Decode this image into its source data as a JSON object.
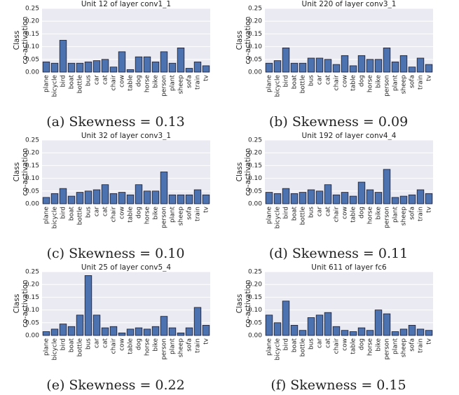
{
  "chart_data": [
    {
      "type": "bar",
      "title": "Unit 12 of layer conv1_1",
      "ylabel": [
        "Class",
        "co-activation"
      ],
      "caption": "(a) Skewness = 0.13",
      "categories": [
        "plane",
        "bicycle",
        "bird",
        "boat",
        "bottle",
        "bus",
        "car",
        "cat",
        "chair",
        "cow",
        "table",
        "dog",
        "horse",
        "bike",
        "person",
        "plant",
        "sheep",
        "sofa",
        "train",
        "tv"
      ],
      "values": [
        0.04,
        0.035,
        0.125,
        0.035,
        0.035,
        0.04,
        0.045,
        0.05,
        0.02,
        0.08,
        0.01,
        0.06,
        0.06,
        0.04,
        0.08,
        0.035,
        0.095,
        0.015,
        0.04,
        0.025
      ],
      "color": "#4c72b0",
      "ylim": [
        0,
        0.25
      ],
      "yticks": [
        {
          "value": 0,
          "label": "0.00"
        },
        {
          "value": 0.05,
          "label": "0.05"
        },
        {
          "value": 0.1,
          "label": "0.10"
        },
        {
          "value": 0.15,
          "label": "0.15"
        },
        {
          "value": 0.2,
          "label": "0.20"
        },
        {
          "value": 0.25,
          "label": "0.25"
        }
      ],
      "grid": true
    },
    {
      "type": "bar",
      "title": "Unit 220 of layer conv3_1",
      "ylabel": [
        "Class",
        "co-activation"
      ],
      "caption": "(b) Skewness = 0.09",
      "categories": [
        "plane",
        "bicycle",
        "bird",
        "boat",
        "bottle",
        "bus",
        "car",
        "cat",
        "chair",
        "cow",
        "table",
        "dog",
        "horse",
        "bike",
        "person",
        "plant",
        "sheep",
        "sofa",
        "train",
        "tv"
      ],
      "values": [
        0.035,
        0.045,
        0.095,
        0.035,
        0.035,
        0.055,
        0.055,
        0.05,
        0.03,
        0.065,
        0.025,
        0.065,
        0.05,
        0.05,
        0.095,
        0.04,
        0.065,
        0.02,
        0.055,
        0.03
      ],
      "color": "#4c72b0",
      "ylim": [
        0,
        0.25
      ],
      "yticks": [
        {
          "value": 0,
          "label": "0.00"
        },
        {
          "value": 0.05,
          "label": "0.05"
        },
        {
          "value": 0.1,
          "label": "0.10"
        },
        {
          "value": 0.15,
          "label": "0.15"
        },
        {
          "value": 0.2,
          "label": "0.20"
        },
        {
          "value": 0.25,
          "label": "0.25"
        }
      ],
      "grid": true
    },
    {
      "type": "bar",
      "title": "Unit 32 of layer conv3_1",
      "ylabel": [
        "Class",
        "co-activation"
      ],
      "caption": "(c) Skewness = 0.10",
      "categories": [
        "plane",
        "bicycle",
        "bird",
        "boat",
        "bottle",
        "bus",
        "car",
        "cat",
        "chair",
        "cow",
        "table",
        "dog",
        "horse",
        "bike",
        "person",
        "plant",
        "sheep",
        "sofa",
        "train",
        "tv"
      ],
      "values": [
        0.025,
        0.04,
        0.06,
        0.03,
        0.045,
        0.05,
        0.055,
        0.075,
        0.04,
        0.045,
        0.035,
        0.075,
        0.05,
        0.05,
        0.125,
        0.035,
        0.035,
        0.035,
        0.055,
        0.035
      ],
      "color": "#4c72b0",
      "ylim": [
        0,
        0.25
      ],
      "yticks": [
        {
          "value": 0,
          "label": "0.00"
        },
        {
          "value": 0.05,
          "label": "0.05"
        },
        {
          "value": 0.1,
          "label": "0.10"
        },
        {
          "value": 0.15,
          "label": "0.15"
        },
        {
          "value": 0.2,
          "label": "0.20"
        },
        {
          "value": 0.25,
          "label": "0.25"
        }
      ],
      "grid": true
    },
    {
      "type": "bar",
      "title": "Unit 192 of layer conv4_4",
      "ylabel": [
        "Class",
        "co-activation"
      ],
      "caption": "(d) Skewness = 0.11",
      "categories": [
        "plane",
        "bicycle",
        "bird",
        "boat",
        "bottle",
        "bus",
        "car",
        "cat",
        "chair",
        "cow",
        "table",
        "dog",
        "horse",
        "bike",
        "person",
        "plant",
        "sheep",
        "sofa",
        "train",
        "tv"
      ],
      "values": [
        0.045,
        0.04,
        0.06,
        0.04,
        0.045,
        0.055,
        0.05,
        0.075,
        0.035,
        0.045,
        0.03,
        0.085,
        0.055,
        0.045,
        0.135,
        0.025,
        0.03,
        0.035,
        0.055,
        0.04
      ],
      "color": "#4c72b0",
      "ylim": [
        0,
        0.25
      ],
      "yticks": [
        {
          "value": 0,
          "label": "0.00"
        },
        {
          "value": 0.05,
          "label": "0.05"
        },
        {
          "value": 0.1,
          "label": "0.10"
        },
        {
          "value": 0.15,
          "label": "0.15"
        },
        {
          "value": 0.2,
          "label": "0.20"
        },
        {
          "value": 0.25,
          "label": "0.25"
        }
      ],
      "grid": true
    },
    {
      "type": "bar",
      "title": "Unit 25 of layer conv5_4",
      "ylabel": [
        "Class",
        "co-activation"
      ],
      "caption": "(e) Skewness = 0.22",
      "categories": [
        "plane",
        "bicycle",
        "bird",
        "boat",
        "bottle",
        "bus",
        "car",
        "cat",
        "chair",
        "cow",
        "table",
        "dog",
        "horse",
        "bike",
        "person",
        "plant",
        "sheep",
        "sofa",
        "train",
        "tv"
      ],
      "values": [
        0.015,
        0.025,
        0.045,
        0.035,
        0.08,
        0.235,
        0.08,
        0.03,
        0.035,
        0.01,
        0.025,
        0.03,
        0.025,
        0.035,
        0.075,
        0.03,
        0.01,
        0.03,
        0.11,
        0.04
      ],
      "color": "#4c72b0",
      "ylim": [
        0,
        0.25
      ],
      "yticks": [
        {
          "value": 0,
          "label": "0.00"
        },
        {
          "value": 0.05,
          "label": "0.05"
        },
        {
          "value": 0.1,
          "label": "0.10"
        },
        {
          "value": 0.15,
          "label": "0.15"
        },
        {
          "value": 0.2,
          "label": "0.20"
        },
        {
          "value": 0.25,
          "label": "0.25"
        }
      ],
      "grid": true
    },
    {
      "type": "bar",
      "title": "Unit 611 of layer fc6",
      "ylabel": [
        "Class",
        "co-activation"
      ],
      "caption": "(f) Skewness = 0.15",
      "categories": [
        "plane",
        "bicycle",
        "bird",
        "boat",
        "bottle",
        "bus",
        "car",
        "cat",
        "chair",
        "cow",
        "table",
        "dog",
        "horse",
        "bike",
        "person",
        "plant",
        "sheep",
        "sofa",
        "train",
        "tv"
      ],
      "values": [
        0.08,
        0.05,
        0.135,
        0.04,
        0.02,
        0.07,
        0.08,
        0.09,
        0.035,
        0.02,
        0.015,
        0.03,
        0.02,
        0.1,
        0.085,
        0.015,
        0.025,
        0.04,
        0.025,
        0.02
      ],
      "color": "#4c72b0",
      "ylim": [
        0,
        0.25
      ],
      "yticks": [
        {
          "value": 0,
          "label": "0.00"
        },
        {
          "value": 0.05,
          "label": "0.05"
        },
        {
          "value": 0.1,
          "label": "0.10"
        },
        {
          "value": 0.15,
          "label": "0.15"
        },
        {
          "value": 0.2,
          "label": "0.20"
        },
        {
          "value": 0.25,
          "label": "0.25"
        }
      ],
      "grid": true
    }
  ]
}
